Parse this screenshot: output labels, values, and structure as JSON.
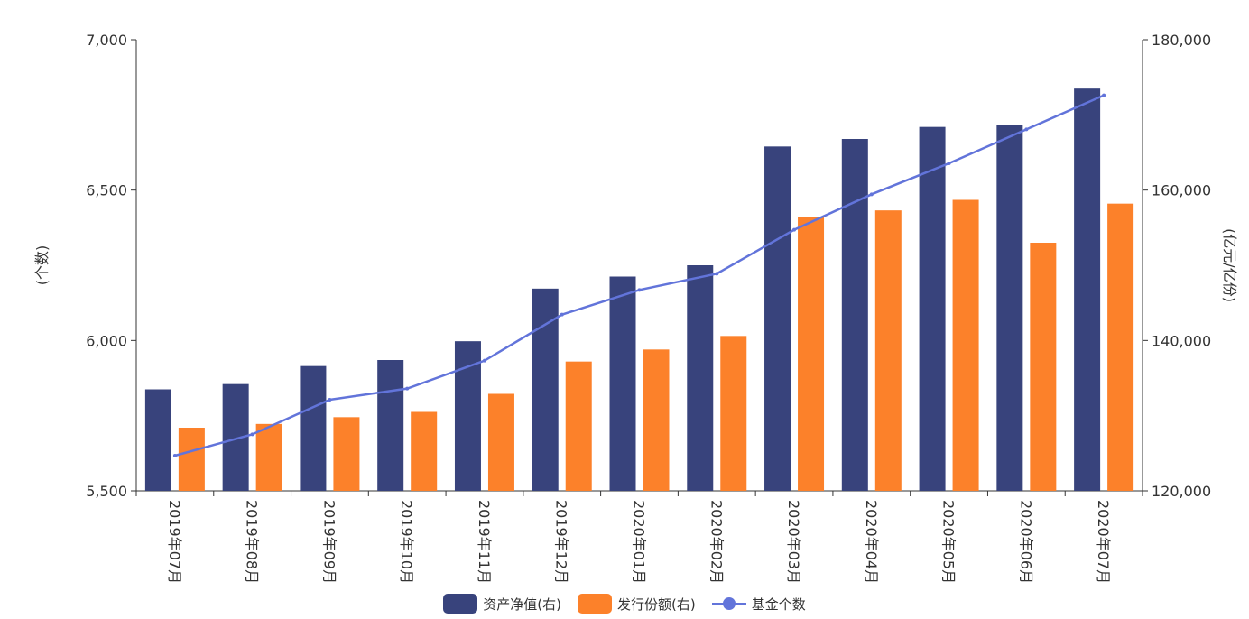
{
  "chart_data": {
    "type": "bar",
    "categories": [
      "2019年07月",
      "2019年08月",
      "2019年09月",
      "2019年10月",
      "2019年11月",
      "2019年12月",
      "2020年01月",
      "2020年02月",
      "2020年03月",
      "2020年04月",
      "2020年05月",
      "2020年06月",
      "2020年07月"
    ],
    "series": [
      {
        "name": "资产净值(右)",
        "type": "bar",
        "axis": "right",
        "color": "#38437c",
        "values": [
          133500,
          134200,
          136600,
          137400,
          139900,
          146900,
          148500,
          150000,
          165800,
          166800,
          168400,
          168600,
          173500
        ]
      },
      {
        "name": "发行份额(右)",
        "type": "bar",
        "axis": "right",
        "color": "#fc812a",
        "values": [
          128400,
          128900,
          129800,
          130500,
          132900,
          137200,
          138800,
          140600,
          156400,
          157300,
          158700,
          153000,
          158200
        ]
      },
      {
        "name": "基金个数",
        "type": "line",
        "axis": "left",
        "color": "#6274da",
        "values": [
          5617,
          5688,
          5803,
          5840,
          5933,
          6086,
          6168,
          6222,
          6368,
          6486,
          6589,
          6702,
          6815
        ]
      }
    ],
    "left_axis": {
      "label": "(个数)",
      "min": 5500,
      "max": 7000,
      "ticks": [
        "5,500",
        "6,000",
        "6,500",
        "7,000"
      ]
    },
    "right_axis": {
      "label": "(亿元/亿份)",
      "min": 120000,
      "max": 180000,
      "ticks": [
        "120,000",
        "140,000",
        "160,000",
        "180,000"
      ]
    },
    "grid": false,
    "legend_position": "bottom-center"
  }
}
